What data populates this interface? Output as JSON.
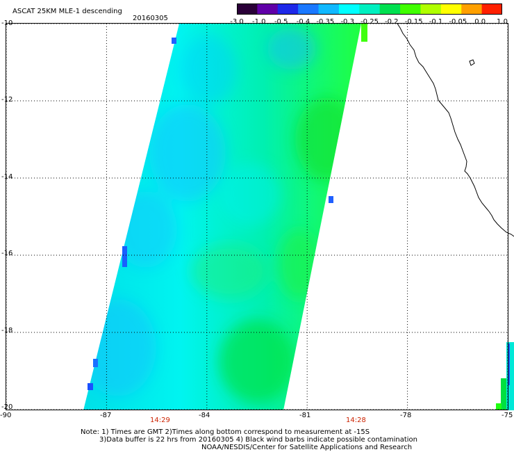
{
  "header": {
    "title": "ASCAT 25KM MLE-1 descending",
    "date": "20160305"
  },
  "colorbar": {
    "tick_labels": [
      "-3.0",
      "-1.0",
      "-0.5",
      "-0.4",
      "-0.35",
      "-0.3",
      "-0.25",
      "-0.2",
      "-0.15",
      "-0.1",
      "-0.05",
      "0.0",
      "1.0"
    ],
    "colors": [
      "#2a0038",
      "#6000a8",
      "#1e28e8",
      "#1a78ff",
      "#10b8ff",
      "#00ffff",
      "#00f0c0",
      "#00e050",
      "#40ff00",
      "#b0ff00",
      "#ffff00",
      "#ffa000",
      "#ff2000"
    ]
  },
  "axes": {
    "lat_labels": [
      "-10",
      "-12",
      "-14",
      "-16",
      "-18",
      "-20"
    ],
    "lon_labels": [
      "-90",
      "-87",
      "-84",
      "-81",
      "-78",
      "-75"
    ],
    "lat_range": [
      -20,
      -10
    ],
    "lon_range": [
      -90,
      -75
    ],
    "grid": "dotted"
  },
  "times": [
    "14:29",
    "14:28"
  ],
  "notes": [
    "Note: 1) Times are GMT 2)Times along bottom correspond to measurement at -15S",
    "3)Data buffer is 22 hrs from 20160305 4) Black wind barbs indicate possible contamination",
    "NOAA/NESDIS/Center for Satellite Applications and Research"
  ]
}
